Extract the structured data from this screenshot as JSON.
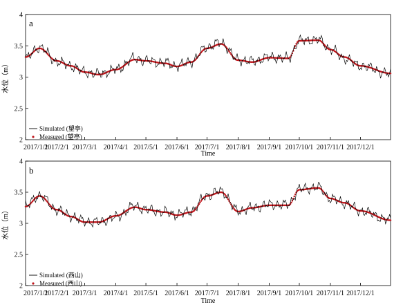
{
  "chart_data": [
    {
      "type": "line",
      "panel_label": "a",
      "xlabel": "Time",
      "ylabel": "水位（m）",
      "ylim": [
        2,
        4
      ],
      "yticks": [
        2,
        2.5,
        3,
        3.5,
        4
      ],
      "ytick_labels": [
        "2",
        "2.5",
        "3",
        "3.5",
        "4"
      ],
      "xlim": [
        "2017-01-01",
        "2017-12-31"
      ],
      "xticks": [
        "2017-01-01",
        "2017-02-01",
        "2017-03-01",
        "2017-04-01",
        "2017-05-01",
        "2017-06-01",
        "2017-07-01",
        "2017-08-01",
        "2017-09-01",
        "2017-10-01",
        "2017-11-01",
        "2017-12-01"
      ],
      "xtick_labels": [
        "2017/1/1",
        "2017/2/1",
        "2017/3/1",
        "2017/4/1",
        "2017/5/1",
        "2017/6/1",
        "2017/7/1",
        "2017/8/1",
        "2017/9/1",
        "2017/10/1",
        "2017/11/1",
        "2017/12/1"
      ],
      "legend_position": "bottom-left",
      "colors": {
        "simulated": "#000000",
        "measured": "#c0161c"
      },
      "series": [
        {
          "name": "Simulated (望亭)",
          "style": "line",
          "anchors": [
            [
              "2017-01-01",
              3.3
            ],
            [
              "2017-01-15",
              3.48
            ],
            [
              "2017-02-01",
              3.25
            ],
            [
              "2017-02-15",
              3.18
            ],
            [
              "2017-03-01",
              3.08
            ],
            [
              "2017-03-15",
              3.05
            ],
            [
              "2017-04-01",
              3.12
            ],
            [
              "2017-04-20",
              3.3
            ],
            [
              "2017-05-01",
              3.26
            ],
            [
              "2017-05-20",
              3.23
            ],
            [
              "2017-06-01",
              3.18
            ],
            [
              "2017-06-15",
              3.25
            ],
            [
              "2017-07-01",
              3.48
            ],
            [
              "2017-07-15",
              3.55
            ],
            [
              "2017-08-01",
              3.28
            ],
            [
              "2017-08-15",
              3.25
            ],
            [
              "2017-09-01",
              3.32
            ],
            [
              "2017-09-20",
              3.3
            ],
            [
              "2017-10-01",
              3.58
            ],
            [
              "2017-10-20",
              3.6
            ],
            [
              "2017-11-01",
              3.45
            ],
            [
              "2017-11-15",
              3.3
            ],
            [
              "2017-12-01",
              3.18
            ],
            [
              "2017-12-31",
              3.05
            ]
          ]
        },
        {
          "name": "Measured (望亭)",
          "style": "points",
          "anchors": [
            [
              "2017-01-01",
              3.32
            ],
            [
              "2017-01-15",
              3.46
            ],
            [
              "2017-02-01",
              3.26
            ],
            [
              "2017-02-15",
              3.18
            ],
            [
              "2017-03-01",
              3.08
            ],
            [
              "2017-03-15",
              3.04
            ],
            [
              "2017-04-01",
              3.12
            ],
            [
              "2017-04-20",
              3.28
            ],
            [
              "2017-05-01",
              3.26
            ],
            [
              "2017-05-20",
              3.22
            ],
            [
              "2017-06-01",
              3.17
            ],
            [
              "2017-06-15",
              3.24
            ],
            [
              "2017-07-01",
              3.46
            ],
            [
              "2017-07-15",
              3.53
            ],
            [
              "2017-08-01",
              3.27
            ],
            [
              "2017-08-15",
              3.24
            ],
            [
              "2017-09-01",
              3.31
            ],
            [
              "2017-09-20",
              3.3
            ],
            [
              "2017-10-01",
              3.58
            ],
            [
              "2017-10-20",
              3.59
            ],
            [
              "2017-11-01",
              3.44
            ],
            [
              "2017-11-15",
              3.32
            ],
            [
              "2017-12-01",
              3.18
            ],
            [
              "2017-12-31",
              3.06
            ]
          ]
        }
      ]
    },
    {
      "type": "line",
      "panel_label": "b",
      "xlabel": "Time",
      "ylabel": "水位（m）",
      "ylim": [
        2,
        4
      ],
      "yticks": [
        2,
        2.5,
        3,
        3.5,
        4
      ],
      "ytick_labels": [
        "2",
        "2.5",
        "3",
        "3.5",
        "4"
      ],
      "xlim": [
        "2017-01-01",
        "2017-12-31"
      ],
      "xticks": [
        "2017-01-01",
        "2017-02-01",
        "2017-03-01",
        "2017-04-01",
        "2017-05-01",
        "2017-06-01",
        "2017-07-01",
        "2017-08-01",
        "2017-09-01",
        "2017-10-01",
        "2017-11-01",
        "2017-12-01"
      ],
      "xtick_labels": [
        "2017/1/1",
        "2017/2/1",
        "2017/3/1",
        "2017/4/1",
        "2017/5/1",
        "2017/6/1",
        "2017/7/1",
        "2017/8/1",
        "2017/9/1",
        "2017/10/1",
        "2017/11/1",
        "2017/12/1"
      ],
      "legend_position": "bottom-left",
      "colors": {
        "simulated": "#000000",
        "measured": "#c0161c"
      },
      "series": [
        {
          "name": "Simulated (西山)",
          "style": "line",
          "anchors": [
            [
              "2017-01-01",
              3.28
            ],
            [
              "2017-01-15",
              3.45
            ],
            [
              "2017-02-01",
              3.22
            ],
            [
              "2017-02-15",
              3.12
            ],
            [
              "2017-03-01",
              3.03
            ],
            [
              "2017-03-15",
              3.02
            ],
            [
              "2017-04-01",
              3.1
            ],
            [
              "2017-04-20",
              3.28
            ],
            [
              "2017-05-01",
              3.22
            ],
            [
              "2017-05-20",
              3.18
            ],
            [
              "2017-06-01",
              3.14
            ],
            [
              "2017-06-15",
              3.2
            ],
            [
              "2017-07-01",
              3.45
            ],
            [
              "2017-07-15",
              3.52
            ],
            [
              "2017-08-01",
              3.2
            ],
            [
              "2017-08-15",
              3.25
            ],
            [
              "2017-09-01",
              3.3
            ],
            [
              "2017-09-20",
              3.3
            ],
            [
              "2017-10-01",
              3.55
            ],
            [
              "2017-10-20",
              3.58
            ],
            [
              "2017-11-01",
              3.4
            ],
            [
              "2017-11-15",
              3.33
            ],
            [
              "2017-12-01",
              3.2
            ],
            [
              "2017-12-31",
              3.05
            ]
          ]
        },
        {
          "name": "Measured (西山)",
          "style": "points",
          "anchors": [
            [
              "2017-01-01",
              3.27
            ],
            [
              "2017-01-15",
              3.44
            ],
            [
              "2017-02-01",
              3.22
            ],
            [
              "2017-02-15",
              3.11
            ],
            [
              "2017-03-01",
              3.02
            ],
            [
              "2017-03-15",
              3.02
            ],
            [
              "2017-04-01",
              3.12
            ],
            [
              "2017-04-20",
              3.26
            ],
            [
              "2017-05-01",
              3.22
            ],
            [
              "2017-05-20",
              3.18
            ],
            [
              "2017-06-01",
              3.13
            ],
            [
              "2017-06-15",
              3.18
            ],
            [
              "2017-07-01",
              3.44
            ],
            [
              "2017-07-15",
              3.5
            ],
            [
              "2017-08-01",
              3.19
            ],
            [
              "2017-08-15",
              3.25
            ],
            [
              "2017-09-01",
              3.29
            ],
            [
              "2017-09-20",
              3.29
            ],
            [
              "2017-10-01",
              3.54
            ],
            [
              "2017-10-20",
              3.57
            ],
            [
              "2017-11-01",
              3.4
            ],
            [
              "2017-11-15",
              3.33
            ],
            [
              "2017-12-01",
              3.2
            ],
            [
              "2017-12-31",
              3.05
            ]
          ]
        }
      ]
    }
  ]
}
